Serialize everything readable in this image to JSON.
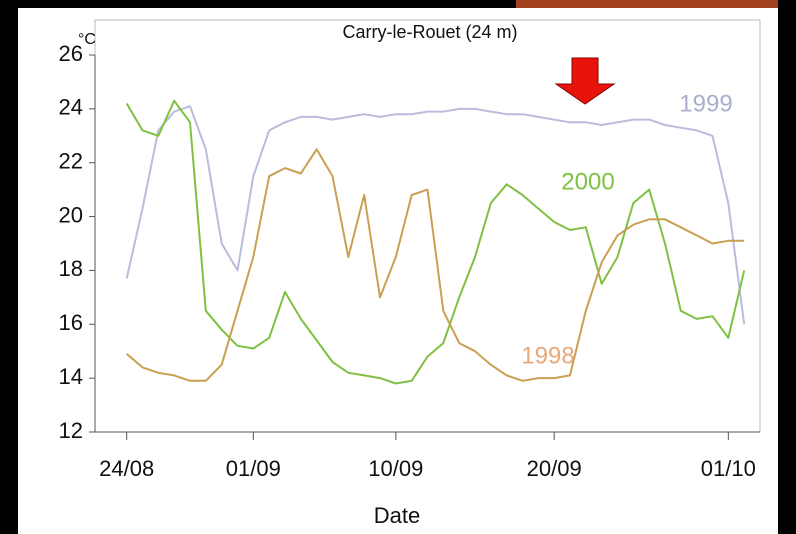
{
  "chart_data": {
    "type": "line",
    "title": "Carry-le-Rouet (24 m)",
    "y_unit": "°C",
    "x_label": "Date",
    "x": [
      "24/08",
      "25/08",
      "26/08",
      "27/08",
      "28/08",
      "29/08",
      "30/08",
      "31/08",
      "01/09",
      "02/09",
      "03/09",
      "04/09",
      "05/09",
      "06/09",
      "07/09",
      "08/09",
      "09/09",
      "10/09",
      "11/09",
      "12/09",
      "13/09",
      "14/09",
      "15/09",
      "16/09",
      "17/09",
      "18/09",
      "19/09",
      "20/09",
      "21/09",
      "22/09",
      "23/09",
      "24/09",
      "25/09",
      "26/09",
      "27/09",
      "28/09",
      "29/09",
      "30/09",
      "01/10",
      "02/10"
    ],
    "series": [
      {
        "name": "1999",
        "color": "#b9bddb",
        "values": [
          17.7,
          20.3,
          23.2,
          23.9,
          24.1,
          22.5,
          19.0,
          18.0,
          21.5,
          23.2,
          23.5,
          23.7,
          23.7,
          23.6,
          23.7,
          23.8,
          23.7,
          23.8,
          23.8,
          23.9,
          23.9,
          24.0,
          24.0,
          23.9,
          23.8,
          23.8,
          23.7,
          23.6,
          23.5,
          23.5,
          23.4,
          23.5,
          23.6,
          23.6,
          23.4,
          23.3,
          23.2,
          23.0,
          20.5,
          16.0
        ]
      },
      {
        "name": "2000",
        "color": "#7fc142",
        "values": [
          24.2,
          23.2,
          23.0,
          24.3,
          23.5,
          16.5,
          15.8,
          15.2,
          15.1,
          15.5,
          17.2,
          16.2,
          15.4,
          14.6,
          14.2,
          14.1,
          14.0,
          13.8,
          13.9,
          14.8,
          15.3,
          17.0,
          18.5,
          20.5,
          21.2,
          20.8,
          20.3,
          19.8,
          19.5,
          19.6,
          17.5,
          18.5,
          20.5,
          21.0,
          19.0,
          16.5,
          16.2,
          16.3,
          15.5,
          18.0
        ]
      },
      {
        "name": "1998",
        "color": "#c9a052",
        "values": [
          14.9,
          14.4,
          14.2,
          14.1,
          13.9,
          13.9,
          14.5,
          16.5,
          18.5,
          21.5,
          21.8,
          21.6,
          22.5,
          21.5,
          18.5,
          20.8,
          17.0,
          18.5,
          20.8,
          21.0,
          16.5,
          15.3,
          15.0,
          14.5,
          14.1,
          13.9,
          14.0,
          14.0,
          14.1,
          16.5,
          18.3,
          19.3,
          19.7,
          19.9,
          19.9,
          19.6,
          19.3,
          19.0,
          19.1,
          19.1
        ]
      }
    ],
    "xlim": [
      "22/08",
      "03/10"
    ],
    "xticks": [
      "24/08",
      "01/09",
      "10/09",
      "20/09",
      "01/10"
    ],
    "ylim": [
      12,
      26
    ],
    "yticks": [
      12,
      14,
      16,
      18,
      20,
      22,
      24,
      26
    ],
    "grid": false
  }
}
